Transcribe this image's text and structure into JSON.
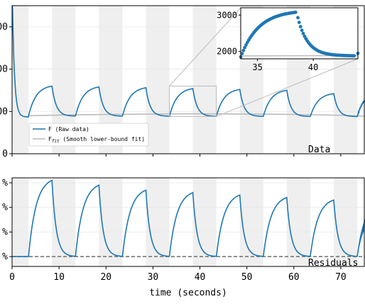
{
  "chart_data": [
    {
      "id": "top",
      "type": "line",
      "panel_label": "Data",
      "xlim": [
        0,
        75
      ],
      "ylim": [
        0,
        3500
      ],
      "y_tick_labels": [
        "0",
        "00",
        "00",
        "00"
      ],
      "y_tick_values": [
        0,
        1000,
        2000,
        3000
      ],
      "shaded_intervals": [
        [
          0,
          3.5
        ],
        [
          8.5,
          13.5
        ],
        [
          18.5,
          23.5
        ],
        [
          28.5,
          33.5
        ],
        [
          38.5,
          43.5
        ],
        [
          48.5,
          53.5
        ],
        [
          58.5,
          63.5
        ],
        [
          68.5,
          73.5
        ]
      ],
      "series": [
        {
          "name": "F  (Raw data)",
          "color": "#1f77b4",
          "style": "solid",
          "cycle_period": 10,
          "baseline": 870,
          "peak_values": [
            1600,
            1580,
            1560,
            1540,
            1520,
            1500,
            1420,
            1430
          ]
        },
        {
          "name": "F_fit (Smooth lower-bound fit)",
          "color": "#bbbbbb",
          "style": "solid",
          "x": [
            3.5,
            10,
            20,
            30,
            40,
            50,
            60,
            70,
            75
          ],
          "y": [
            900,
            915,
            930,
            940,
            945,
            940,
            930,
            910,
            890
          ]
        }
      ],
      "legend_position": "lower-left",
      "zoom_box": {
        "xlim": [
          33.5,
          43.5
        ],
        "ylim": [
          880,
          1600
        ]
      }
    },
    {
      "id": "inset",
      "type": "scatter",
      "xlim": [
        33.5,
        44
      ],
      "ylim": [
        1800,
        3200
      ],
      "x_ticks": [
        35,
        40
      ],
      "y_ticks": [
        2000,
        3000
      ],
      "series": [
        {
          "name": "F  (Raw data)",
          "color": "#1f77b4",
          "rise_start": [
            33.5,
            1850
          ],
          "peak": [
            38.5,
            3080
          ],
          "end": [
            43.5,
            1880
          ]
        },
        {
          "name": "F_fit (Smooth lower-bound fit)",
          "color": "#bbbbbb",
          "x": [
            33.5,
            44
          ],
          "y": [
            1880,
            1890
          ]
        }
      ]
    },
    {
      "id": "bottom",
      "type": "line",
      "panel_label": "Residuals",
      "xlim": [
        0,
        75
      ],
      "ylim": [
        -0.04,
        0.32
      ],
      "y_tick_labels": [
        "%",
        "%",
        "%",
        "%"
      ],
      "x_ticks": [
        0,
        10,
        20,
        30,
        40,
        50,
        60,
        70
      ],
      "xlabel": "time (seconds)",
      "shaded_intervals": [
        [
          0,
          3.5
        ],
        [
          8.5,
          13.5
        ],
        [
          18.5,
          23.5
        ],
        [
          28.5,
          33.5
        ],
        [
          38.5,
          43.5
        ],
        [
          48.5,
          53.5
        ],
        [
          58.5,
          63.5
        ],
        [
          68.5,
          73.5
        ]
      ],
      "series": [
        {
          "name": "residual",
          "color": "#1f77b4",
          "cycle_period": 10,
          "peak_values": [
            0.31,
            0.29,
            0.27,
            0.26,
            0.25,
            0.24,
            0.23,
            0.22
          ]
        },
        {
          "name": "zero",
          "color": "#777777",
          "style": "dashed",
          "value": 0
        }
      ]
    }
  ],
  "legend": {
    "entries": [
      {
        "label": "F  (Raw data)",
        "color": "#1f77b4"
      },
      {
        "label": "F",
        "sub": "fit",
        "suffix": " (Smooth lower-bound fit)",
        "color": "#bbbbbb"
      }
    ]
  },
  "colors": {
    "series": "#1f77b4",
    "fit": "#bbbbbb",
    "shade": "#efefef",
    "grid": "#e8e8e8"
  }
}
